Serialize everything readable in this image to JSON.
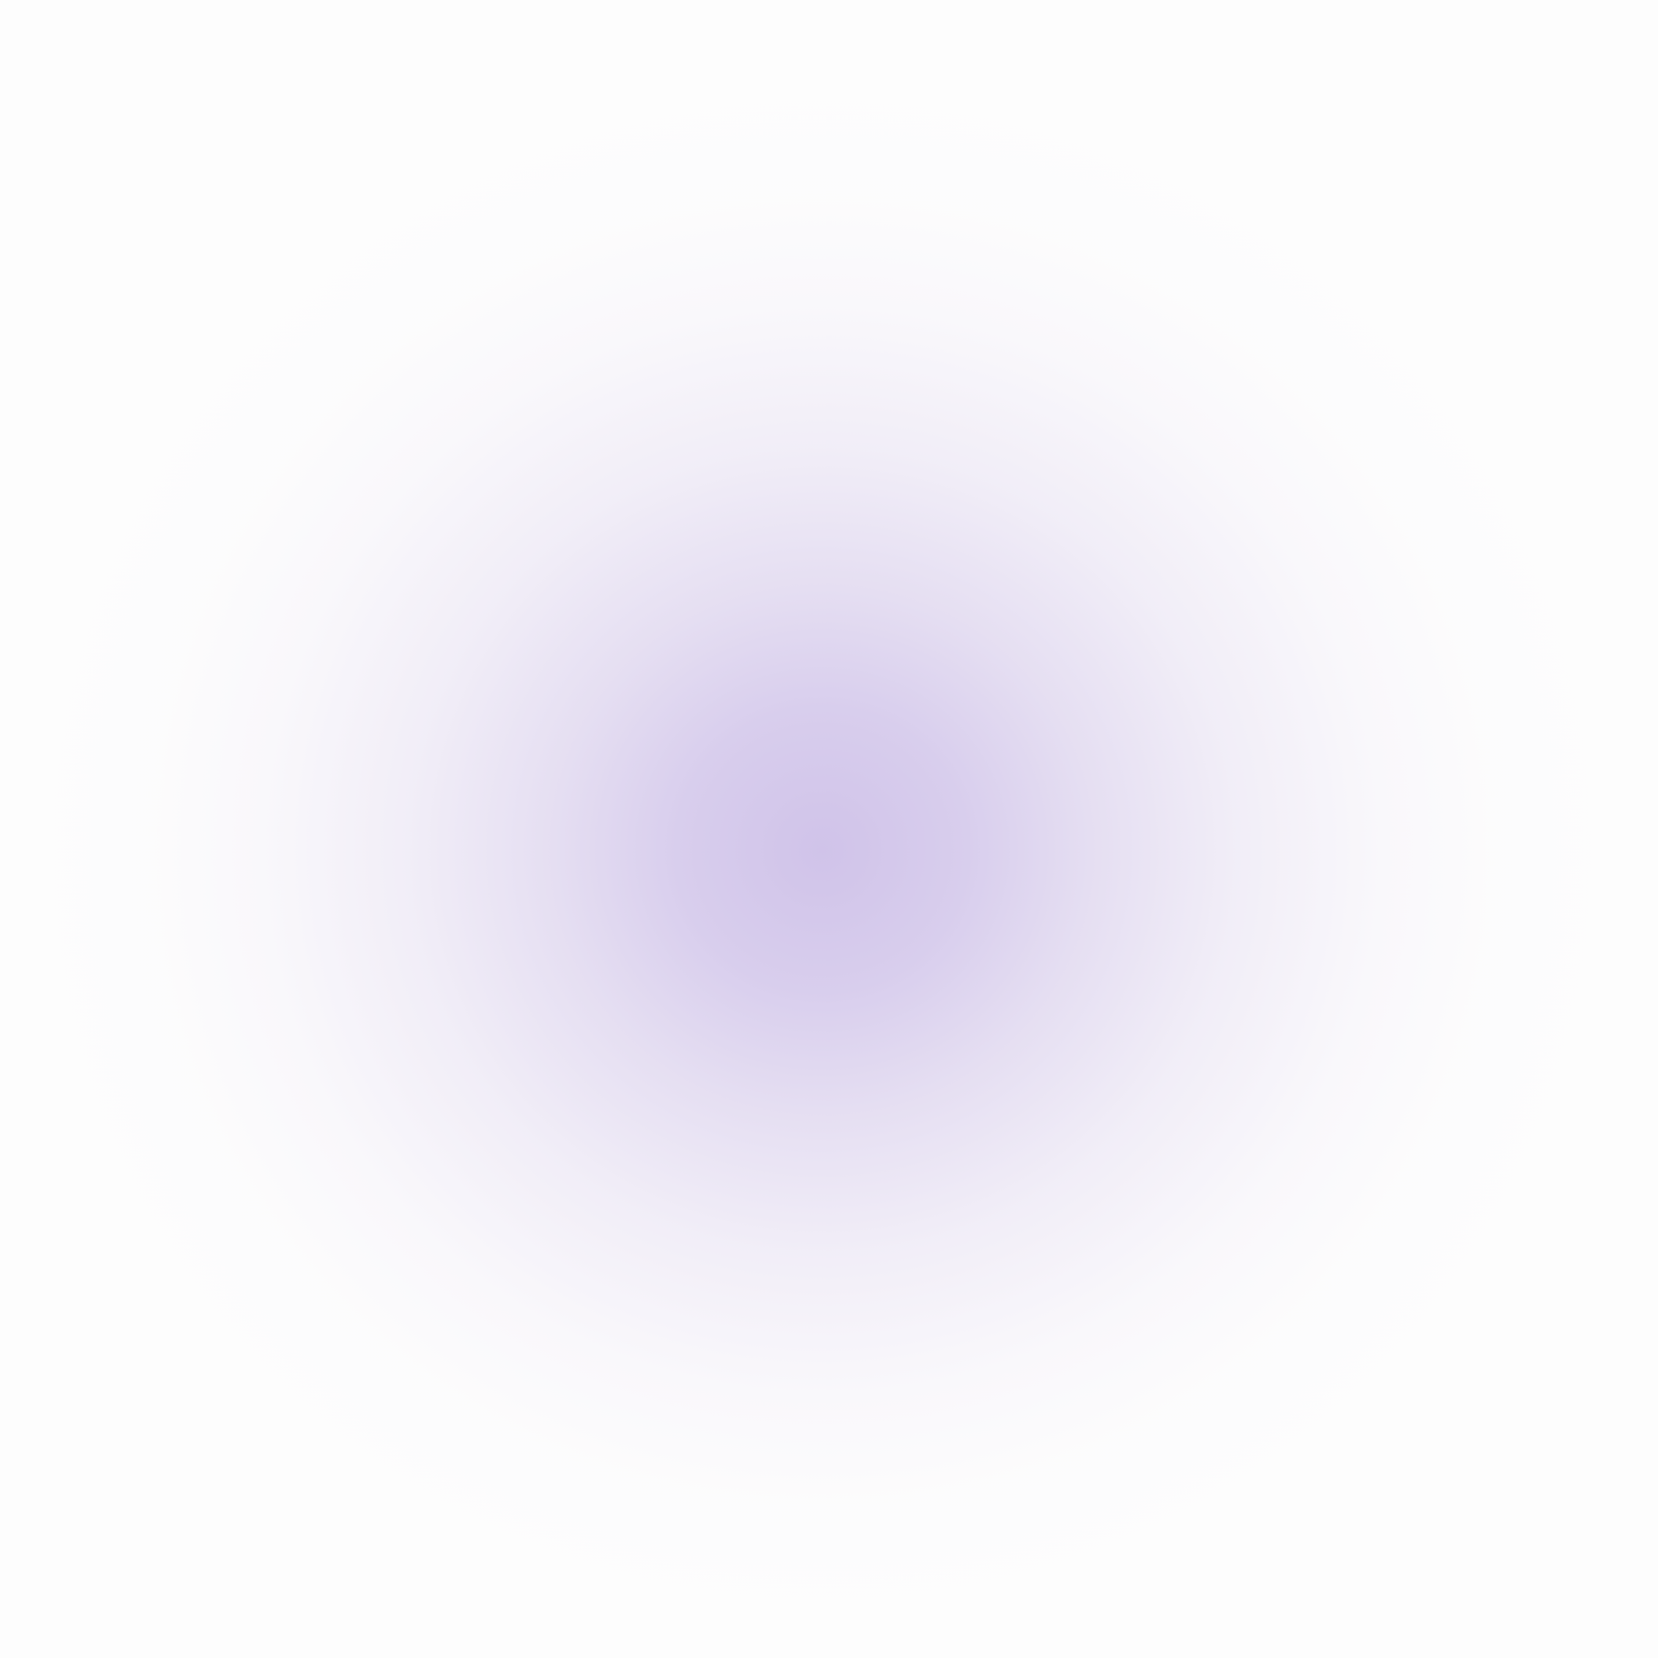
{
  "background": {
    "base_color": "#fdfdfd",
    "glow_color": "#d0c3e9",
    "description_shape": "soft radial lavender glow"
  }
}
